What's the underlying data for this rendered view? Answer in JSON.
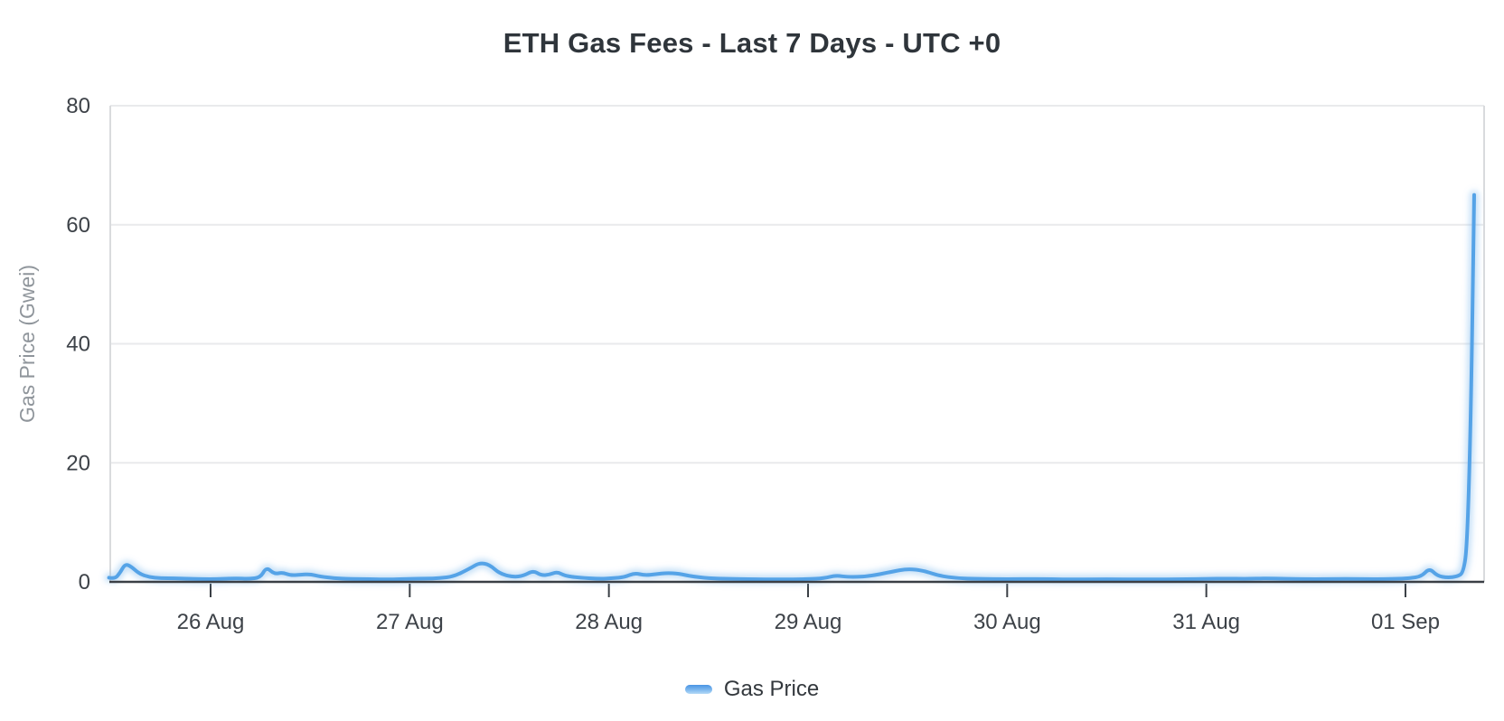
{
  "title": "ETH Gas Fees - Last 7 Days - UTC +0",
  "legend": {
    "items": [
      {
        "label": "Gas Price",
        "color": "#55a3e7"
      }
    ]
  },
  "colors": {
    "line": "#55a3e7",
    "line_glow": "rgba(125,183,238,0.45)",
    "gridline": "#e9eaec",
    "plot_border": "#d9dbdd",
    "axis_line": "#3a3f45",
    "tick_label": "#3d4248",
    "title_text": "#2f353b",
    "y_axis_title_text": "#8f959b",
    "background": "#ffffff"
  },
  "chart_data": {
    "type": "line",
    "title": "ETH Gas Fees - Last 7 Days - UTC +0",
    "xlabel": "",
    "ylabel": "Gas Price (Gwei)",
    "ylim": [
      0,
      80
    ],
    "yticks": [
      0,
      20,
      40,
      60,
      80
    ],
    "x_tick_labels": [
      "26 Aug",
      "27 Aug",
      "28 Aug",
      "29 Aug",
      "30 Aug",
      "31 Aug",
      "01 Sep"
    ],
    "x_tick_positions_days": [
      0,
      1,
      2,
      3,
      4,
      5,
      6
    ],
    "x_range_days": [
      -0.51,
      6.39
    ],
    "grid": "horizontal",
    "legend_position": "bottom",
    "series": [
      {
        "name": "Gas Price",
        "color": "#55a3e7",
        "units": "Gwei",
        "points": [
          [
            -0.51,
            0.7
          ],
          [
            -0.48,
            0.5
          ],
          [
            -0.455,
            1.5
          ],
          [
            -0.43,
            3.0
          ],
          [
            -0.4,
            2.6
          ],
          [
            -0.36,
            1.4
          ],
          [
            -0.31,
            0.8
          ],
          [
            -0.25,
            0.6
          ],
          [
            -0.18,
            0.6
          ],
          [
            -0.1,
            0.5
          ],
          [
            0.0,
            0.45
          ],
          [
            0.06,
            0.5
          ],
          [
            0.13,
            0.6
          ],
          [
            0.19,
            0.5
          ],
          [
            0.25,
            0.7
          ],
          [
            0.28,
            2.5
          ],
          [
            0.32,
            1.3
          ],
          [
            0.36,
            1.6
          ],
          [
            0.4,
            1.1
          ],
          [
            0.45,
            1.2
          ],
          [
            0.5,
            1.3
          ],
          [
            0.55,
            0.9
          ],
          [
            0.62,
            0.6
          ],
          [
            0.7,
            0.5
          ],
          [
            0.8,
            0.45
          ],
          [
            0.9,
            0.4
          ],
          [
            1.0,
            0.5
          ],
          [
            1.08,
            0.55
          ],
          [
            1.15,
            0.6
          ],
          [
            1.22,
            0.9
          ],
          [
            1.3,
            2.2
          ],
          [
            1.35,
            3.2
          ],
          [
            1.4,
            2.9
          ],
          [
            1.45,
            1.4
          ],
          [
            1.52,
            0.8
          ],
          [
            1.57,
            1.0
          ],
          [
            1.62,
            1.9
          ],
          [
            1.66,
            1.1
          ],
          [
            1.7,
            1.2
          ],
          [
            1.74,
            1.7
          ],
          [
            1.78,
            1.0
          ],
          [
            1.85,
            0.7
          ],
          [
            1.95,
            0.5
          ],
          [
            2.02,
            0.6
          ],
          [
            2.08,
            0.8
          ],
          [
            2.13,
            1.5
          ],
          [
            2.18,
            1.1
          ],
          [
            2.24,
            1.3
          ],
          [
            2.29,
            1.5
          ],
          [
            2.35,
            1.4
          ],
          [
            2.42,
            0.9
          ],
          [
            2.5,
            0.6
          ],
          [
            2.6,
            0.5
          ],
          [
            2.72,
            0.45
          ],
          [
            2.85,
            0.4
          ],
          [
            3.0,
            0.45
          ],
          [
            3.08,
            0.6
          ],
          [
            3.14,
            1.1
          ],
          [
            3.2,
            0.8
          ],
          [
            3.3,
            0.9
          ],
          [
            3.42,
            1.7
          ],
          [
            3.5,
            2.2
          ],
          [
            3.58,
            1.9
          ],
          [
            3.66,
            1.0
          ],
          [
            3.75,
            0.6
          ],
          [
            3.85,
            0.5
          ],
          [
            4.0,
            0.45
          ],
          [
            4.15,
            0.5
          ],
          [
            4.3,
            0.4
          ],
          [
            4.5,
            0.45
          ],
          [
            4.7,
            0.4
          ],
          [
            4.9,
            0.45
          ],
          [
            5.0,
            0.5
          ],
          [
            5.1,
            0.55
          ],
          [
            5.2,
            0.5
          ],
          [
            5.3,
            0.6
          ],
          [
            5.4,
            0.5
          ],
          [
            5.55,
            0.45
          ],
          [
            5.7,
            0.5
          ],
          [
            5.85,
            0.45
          ],
          [
            5.95,
            0.5
          ],
          [
            6.02,
            0.6
          ],
          [
            6.08,
            0.9
          ],
          [
            6.12,
            2.3
          ],
          [
            6.16,
            1.0
          ],
          [
            6.21,
            0.7
          ],
          [
            6.26,
            0.9
          ],
          [
            6.29,
            1.5
          ],
          [
            6.31,
            6
          ],
          [
            6.33,
            30
          ],
          [
            6.345,
            65
          ]
        ]
      }
    ]
  }
}
